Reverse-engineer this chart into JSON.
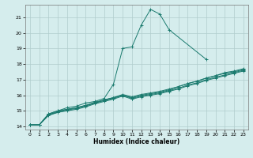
{
  "title": "",
  "xlabel": "Humidex (Indice chaleur)",
  "ylabel": "",
  "bg_color": "#d5eded",
  "grid_color": "#b0cccc",
  "line_color": "#1a7a6e",
  "xlim": [
    -0.5,
    23.5
  ],
  "ylim": [
    13.8,
    21.8
  ],
  "yticks": [
    14,
    15,
    16,
    17,
    18,
    19,
    20,
    21
  ],
  "xticks": [
    0,
    1,
    2,
    3,
    4,
    5,
    6,
    7,
    8,
    9,
    10,
    11,
    12,
    13,
    14,
    15,
    16,
    17,
    18,
    19,
    20,
    21,
    22,
    23
  ],
  "series": [
    {
      "x": [
        0,
        1,
        2,
        3,
        4,
        5,
        6,
        7,
        8,
        9,
        10,
        11,
        12,
        13,
        14,
        15,
        19
      ],
      "y": [
        14.1,
        14.1,
        14.8,
        15.0,
        15.2,
        15.3,
        15.5,
        15.6,
        15.8,
        16.7,
        19.0,
        19.1,
        20.5,
        21.5,
        21.2,
        20.2,
        18.3
      ]
    },
    {
      "x": [
        0,
        1,
        2,
        3,
        4,
        5,
        6,
        7,
        8,
        9,
        10,
        11,
        12,
        13,
        14,
        15,
        16,
        17,
        18,
        19,
        20,
        21,
        22,
        23
      ],
      "y": [
        14.1,
        14.1,
        14.8,
        15.0,
        15.1,
        15.2,
        15.35,
        15.5,
        15.7,
        15.85,
        16.0,
        15.85,
        16.0,
        16.1,
        16.2,
        16.35,
        16.55,
        16.75,
        16.9,
        17.1,
        17.25,
        17.45,
        17.55,
        17.7
      ]
    },
    {
      "x": [
        0,
        1,
        2,
        3,
        4,
        5,
        6,
        7,
        8,
        9,
        10,
        11,
        12,
        13,
        14,
        15,
        16,
        17,
        18,
        19,
        20,
        21,
        22,
        23
      ],
      "y": [
        14.1,
        14.1,
        14.75,
        14.95,
        15.1,
        15.2,
        15.35,
        15.55,
        15.7,
        15.85,
        16.05,
        15.9,
        16.05,
        16.15,
        16.25,
        16.4,
        16.55,
        16.75,
        16.9,
        17.1,
        17.25,
        17.4,
        17.5,
        17.65
      ]
    },
    {
      "x": [
        0,
        1,
        2,
        3,
        4,
        5,
        6,
        7,
        8,
        9,
        10,
        11,
        12,
        13,
        14,
        15,
        16,
        17,
        18,
        19,
        20,
        21,
        22,
        23
      ],
      "y": [
        14.1,
        14.1,
        14.75,
        14.9,
        15.05,
        15.15,
        15.3,
        15.5,
        15.65,
        15.8,
        16.0,
        15.8,
        15.95,
        16.05,
        16.15,
        16.3,
        16.45,
        16.65,
        16.8,
        17.0,
        17.15,
        17.3,
        17.45,
        17.6
      ]
    },
    {
      "x": [
        0,
        1,
        2,
        3,
        4,
        5,
        6,
        7,
        8,
        9,
        10,
        11,
        12,
        13,
        14,
        15,
        16,
        17,
        18,
        19,
        20,
        21,
        22,
        23
      ],
      "y": [
        14.1,
        14.1,
        14.7,
        14.9,
        15.0,
        15.1,
        15.25,
        15.45,
        15.6,
        15.75,
        15.95,
        15.75,
        15.9,
        16.0,
        16.1,
        16.25,
        16.4,
        16.6,
        16.75,
        16.95,
        17.1,
        17.25,
        17.4,
        17.55
      ]
    }
  ]
}
